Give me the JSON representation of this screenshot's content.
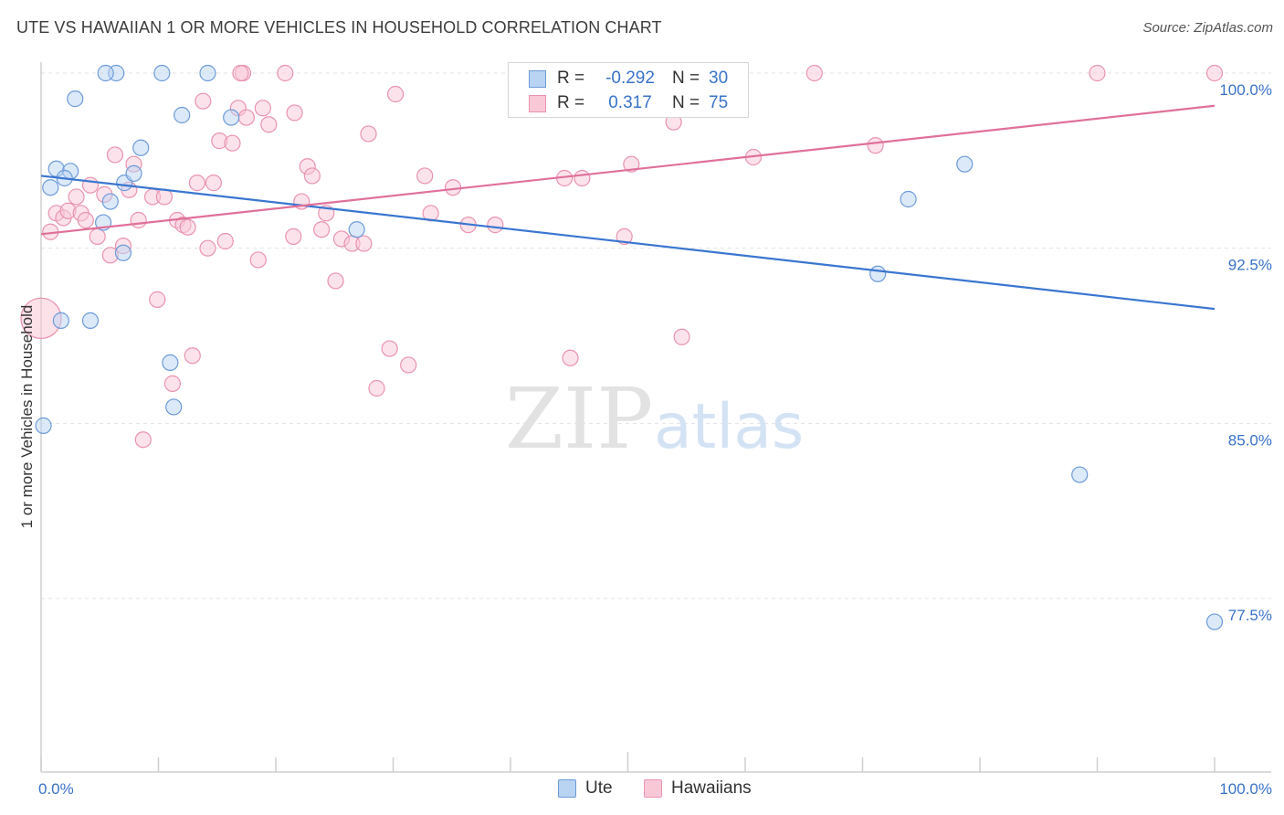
{
  "title": "UTE VS HAWAIIAN 1 OR MORE VEHICLES IN HOUSEHOLD CORRELATION CHART",
  "source": "Source: ZipAtlas.com",
  "watermark": {
    "zip": "ZIP",
    "atlas": "atlas"
  },
  "colors": {
    "ute_fill": "#b9d3f3",
    "ute_stroke": "#6d9bd8",
    "ute_line": "#3a76d0",
    "haw_fill": "#f9c8d7",
    "haw_stroke": "#e993b0",
    "haw_line": "#e0709a",
    "value_text": "#3a73c8",
    "grid": "#e3e3e3"
  },
  "stats": [
    {
      "r_label": "R =",
      "r_value": "-0.292",
      "n_label": "N =",
      "n_value": "30"
    },
    {
      "r_label": "R =",
      "r_value": "0.317",
      "n_label": "N =",
      "n_value": "75"
    }
  ],
  "legend": {
    "ute": "Ute",
    "hawaiians": "Hawaiians"
  },
  "chart_data": {
    "type": "scatter",
    "xlabel": "",
    "ylabel": "1 or more Vehicles in Household",
    "xlim": [
      0,
      100
    ],
    "ylim": [
      71.0,
      101.5
    ],
    "x_tick_labels": {
      "left": "0.0%",
      "right": "100.0%"
    },
    "y_ticks": [
      {
        "value": 100.0,
        "label": "100.0%"
      },
      {
        "value": 92.5,
        "label": "92.5%"
      },
      {
        "value": 85.0,
        "label": "85.0%"
      },
      {
        "value": 77.5,
        "label": "77.5%"
      }
    ],
    "grid": true,
    "legend_position": "bottom-center",
    "series": [
      {
        "name": "Ute",
        "trend": {
          "x": [
            0,
            100
          ],
          "y": [
            95.6,
            89.9
          ]
        },
        "points": [
          [
            0.2,
            84.9
          ],
          [
            0.8,
            95.1
          ],
          [
            1.3,
            95.9
          ],
          [
            1.7,
            89.4
          ],
          [
            2.5,
            95.8
          ],
          [
            2.9,
            98.9
          ],
          [
            4.2,
            89.4
          ],
          [
            5.3,
            93.6
          ],
          [
            5.9,
            94.5
          ],
          [
            7.1,
            95.3
          ],
          [
            7.0,
            92.3
          ],
          [
            7.9,
            95.7
          ],
          [
            8.5,
            96.8
          ],
          [
            6.4,
            100.0
          ],
          [
            10.3,
            100.0
          ],
          [
            11.0,
            87.6
          ],
          [
            11.3,
            85.7
          ],
          [
            12.0,
            98.2
          ],
          [
            14.2,
            100.0
          ],
          [
            16.2,
            98.1
          ],
          [
            26.9,
            93.3
          ],
          [
            42.4,
            100.0
          ],
          [
            45.4,
            100.0
          ],
          [
            71.3,
            91.4
          ],
          [
            73.9,
            94.6
          ],
          [
            78.7,
            96.1
          ],
          [
            88.5,
            82.8
          ],
          [
            100.0,
            76.5
          ],
          [
            5.5,
            100.0
          ],
          [
            2.0,
            95.5
          ]
        ]
      },
      {
        "name": "Hawaiians",
        "trend": {
          "x": [
            0,
            100
          ],
          "y": [
            93.1,
            98.6
          ]
        },
        "points": [
          [
            0.0,
            89.5
          ],
          [
            0.8,
            93.2
          ],
          [
            1.3,
            94.0
          ],
          [
            1.9,
            93.8
          ],
          [
            2.3,
            94.1
          ],
          [
            3.0,
            94.7
          ],
          [
            3.4,
            94.0
          ],
          [
            3.8,
            93.7
          ],
          [
            4.2,
            95.2
          ],
          [
            4.8,
            93.0
          ],
          [
            5.4,
            94.8
          ],
          [
            5.9,
            92.2
          ],
          [
            6.3,
            96.5
          ],
          [
            7.0,
            92.6
          ],
          [
            7.5,
            95.0
          ],
          [
            7.9,
            96.1
          ],
          [
            8.3,
            93.7
          ],
          [
            8.7,
            84.3
          ],
          [
            9.5,
            94.7
          ],
          [
            9.9,
            90.3
          ],
          [
            10.5,
            94.7
          ],
          [
            11.2,
            86.7
          ],
          [
            11.6,
            93.7
          ],
          [
            12.1,
            93.5
          ],
          [
            12.5,
            93.4
          ],
          [
            12.9,
            87.9
          ],
          [
            13.3,
            95.3
          ],
          [
            13.8,
            98.8
          ],
          [
            14.2,
            92.5
          ],
          [
            14.7,
            95.3
          ],
          [
            15.2,
            97.1
          ],
          [
            15.7,
            92.8
          ],
          [
            16.3,
            97.0
          ],
          [
            16.8,
            98.5
          ],
          [
            17.5,
            98.1
          ],
          [
            17.2,
            100.0
          ],
          [
            18.5,
            92.0
          ],
          [
            18.9,
            98.5
          ],
          [
            19.4,
            97.8
          ],
          [
            20.8,
            100.0
          ],
          [
            21.6,
            98.3
          ],
          [
            21.5,
            93.0
          ],
          [
            22.2,
            94.5
          ],
          [
            22.7,
            96.0
          ],
          [
            23.1,
            95.6
          ],
          [
            23.9,
            93.3
          ],
          [
            24.3,
            94.0
          ],
          [
            25.1,
            91.1
          ],
          [
            25.6,
            92.9
          ],
          [
            26.5,
            92.7
          ],
          [
            27.5,
            92.7
          ],
          [
            27.9,
            97.4
          ],
          [
            28.6,
            86.5
          ],
          [
            29.7,
            88.2
          ],
          [
            30.2,
            99.1
          ],
          [
            31.3,
            87.5
          ],
          [
            32.7,
            95.6
          ],
          [
            33.2,
            94.0
          ],
          [
            35.1,
            95.1
          ],
          [
            36.4,
            93.5
          ],
          [
            38.7,
            93.5
          ],
          [
            44.6,
            95.5
          ],
          [
            45.1,
            87.8
          ],
          [
            46.1,
            95.5
          ],
          [
            48.9,
            100.0
          ],
          [
            49.7,
            93.0
          ],
          [
            50.3,
            96.1
          ],
          [
            53.9,
            97.9
          ],
          [
            54.6,
            88.7
          ],
          [
            60.7,
            96.4
          ],
          [
            65.9,
            100.0
          ],
          [
            71.1,
            96.9
          ],
          [
            90.0,
            100.0
          ],
          [
            100.0,
            100.0
          ],
          [
            17.0,
            100.0
          ]
        ]
      }
    ]
  }
}
